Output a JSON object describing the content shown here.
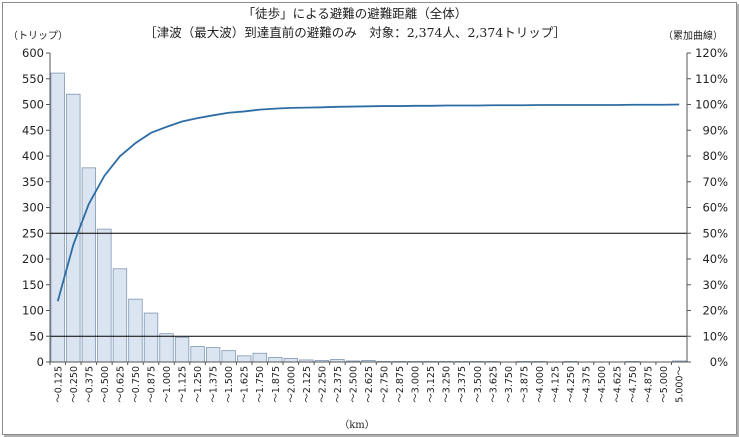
{
  "chart_data": {
    "type": "bar",
    "title": "「徒歩」による避難の避難距離（全体）",
    "subtitle": "［津波（最大波）到達直前の避難のみ　対象：2,374人、2,374トリップ］",
    "ylabel_left": "（トリップ）",
    "ylabel_right": "（累加曲線）",
    "xlabel": "（km）",
    "ylim_left": [
      0,
      600
    ],
    "ylim_right": [
      0,
      120
    ],
    "yticks_left": [
      "0",
      "50",
      "100",
      "150",
      "200",
      "250",
      "300",
      "350",
      "400",
      "450",
      "500",
      "550",
      "600"
    ],
    "yticks_right": [
      "0%",
      "10%",
      "20%",
      "30%",
      "40%",
      "50%",
      "60%",
      "70%",
      "80%",
      "90%",
      "100%",
      "110%",
      "120%"
    ],
    "reference_lines_left": [
      50,
      250
    ],
    "grid": false,
    "legend": "none",
    "categories": [
      "～0.125",
      "～0.250",
      "～0.375",
      "～0.500",
      "～0.625",
      "～0.750",
      "～0.875",
      "～1.000",
      "～1.125",
      "～1.250",
      "～1.375",
      "～1.500",
      "～1.625",
      "～1.750",
      "～1.875",
      "～2.000",
      "～2.125",
      "～2.250",
      "～2.375",
      "～2.500",
      "～2.625",
      "～2.750",
      "～2.875",
      "～3.000",
      "～3.125",
      "～3.250",
      "～3.375",
      "～3.500",
      "～3.625",
      "～3.750",
      "～3.875",
      "～4.000",
      "～4.125",
      "～4.250",
      "～4.375",
      "～4.500",
      "～4.625",
      "～4.750",
      "～4.875",
      "～5.000",
      "5.000～"
    ],
    "series": [
      {
        "type": "bar",
        "axis": "left",
        "values": [
          561,
          520,
          377,
          258,
          181,
          122,
          95,
          55,
          48,
          30,
          28,
          22,
          12,
          17,
          9,
          7,
          4,
          3,
          5,
          2,
          3,
          1,
          1,
          1,
          1,
          1,
          1,
          1,
          1,
          0,
          1,
          1,
          0,
          1,
          0,
          0,
          0,
          1,
          0,
          0,
          2
        ]
      },
      {
        "type": "line",
        "axis": "right",
        "values": [
          23.6,
          45.5,
          61.4,
          72.3,
          79.9,
          85.0,
          89.0,
          91.3,
          93.4,
          94.7,
          95.8,
          96.8,
          97.3,
          98.0,
          98.4,
          98.7,
          98.8,
          98.9,
          99.1,
          99.2,
          99.3,
          99.4,
          99.4,
          99.5,
          99.5,
          99.6,
          99.6,
          99.6,
          99.7,
          99.7,
          99.7,
          99.8,
          99.8,
          99.8,
          99.8,
          99.8,
          99.8,
          99.9,
          99.9,
          99.9,
          100.0
        ]
      }
    ],
    "colors": {
      "bar_fill": "#dbe5f1",
      "bar_stroke": "#7f97b3",
      "line": "#2e6da4",
      "axis": "#555555",
      "reference_line": "#000000"
    }
  }
}
